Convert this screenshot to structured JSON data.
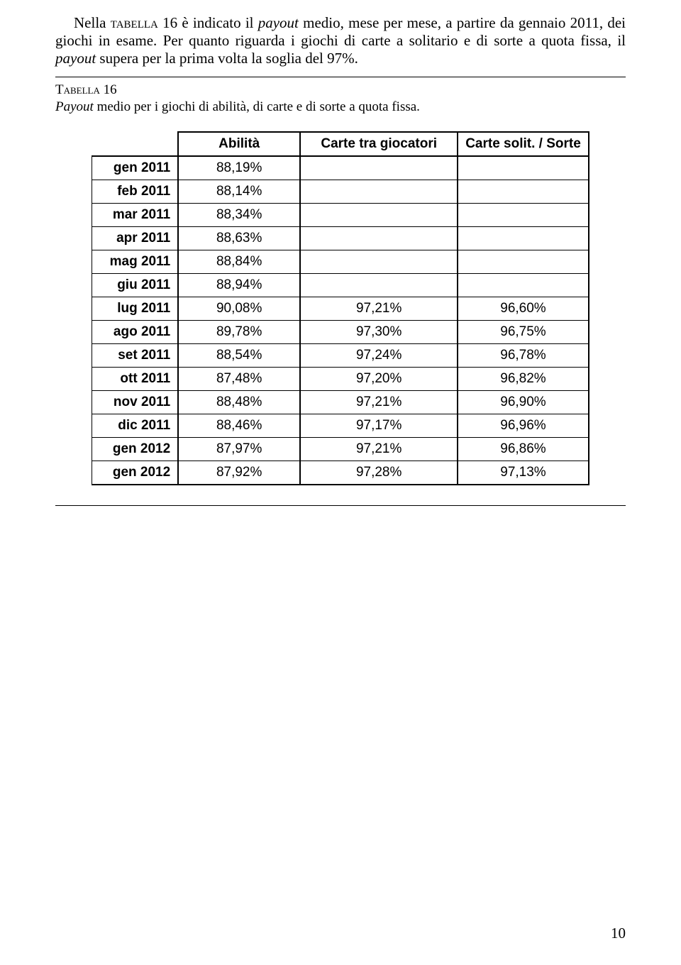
{
  "para1_parts": [
    {
      "t": "Nella ",
      "cls": ""
    },
    {
      "t": "tabella 16",
      "cls": "smallcaps"
    },
    {
      "t": "  è indicato il ",
      "cls": ""
    },
    {
      "t": "payout",
      "cls": "italic"
    },
    {
      "t": " medio, mese per mese, a partire da gennaio 2011, dei giochi in esame. Per quanto riguarda i giochi di carte a solitario e di sorte a quota fissa, il ",
      "cls": ""
    },
    {
      "t": "payout",
      "cls": "italic"
    },
    {
      "t": " supera per la prima volta la soglia del 97%.",
      "cls": ""
    }
  ],
  "caption_parts": [
    {
      "t": "Tabella 16",
      "cls": "smallcaps"
    },
    {
      "t": "\n",
      "cls": ""
    },
    {
      "t": "Payout",
      "cls": "italic"
    },
    {
      "t": " medio per i giochi di abilità, di carte e di sorte a quota fissa.",
      "cls": ""
    }
  ],
  "table": {
    "headers": [
      "Abilità",
      "Carte tra giocatori",
      "Carte solit. / Sorte"
    ],
    "rows": [
      {
        "label": "gen 2011",
        "vals": [
          "88,19%",
          "",
          ""
        ]
      },
      {
        "label": "feb 2011",
        "vals": [
          "88,14%",
          "",
          ""
        ]
      },
      {
        "label": "mar 2011",
        "vals": [
          "88,34%",
          "",
          ""
        ]
      },
      {
        "label": "apr 2011",
        "vals": [
          "88,63%",
          "",
          ""
        ]
      },
      {
        "label": "mag 2011",
        "vals": [
          "88,84%",
          "",
          ""
        ]
      },
      {
        "label": "giu 2011",
        "vals": [
          "88,94%",
          "",
          ""
        ]
      },
      {
        "label": "lug 2011",
        "vals": [
          "90,08%",
          "97,21%",
          "96,60%"
        ]
      },
      {
        "label": "ago 2011",
        "vals": [
          "89,78%",
          "97,30%",
          "96,75%"
        ]
      },
      {
        "label": "set 2011",
        "vals": [
          "88,54%",
          "97,24%",
          "96,78%"
        ]
      },
      {
        "label": "ott 2011",
        "vals": [
          "87,48%",
          "97,20%",
          "96,82%"
        ]
      },
      {
        "label": "nov 2011",
        "vals": [
          "88,48%",
          "97,21%",
          "96,90%"
        ]
      },
      {
        "label": "dic 2011",
        "vals": [
          "88,46%",
          "97,17%",
          "96,96%"
        ]
      },
      {
        "label": "gen 2012",
        "vals": [
          "87,97%",
          "97,21%",
          "96,86%"
        ]
      },
      {
        "label": "gen 2012",
        "vals": [
          "87,92%",
          "97,28%",
          "97,13%"
        ]
      }
    ]
  },
  "page_number": "10"
}
